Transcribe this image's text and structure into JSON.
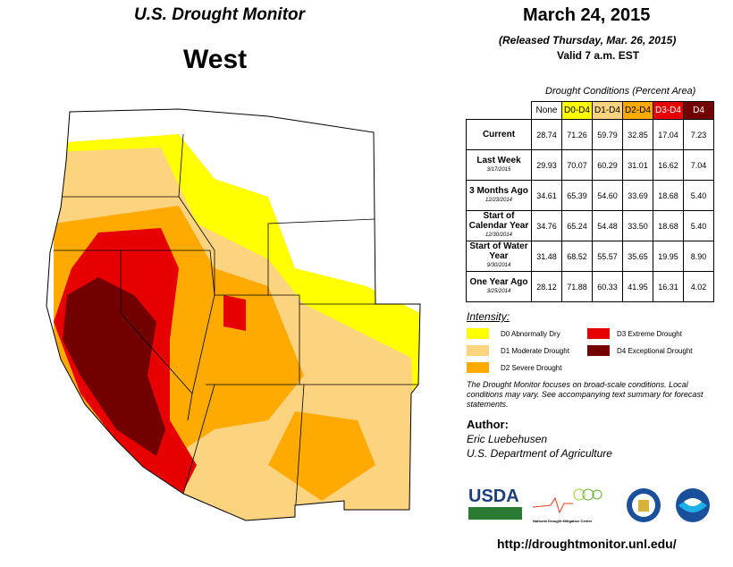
{
  "header": {
    "title": "U.S. Drought Monitor",
    "region": "West",
    "date": "March 24, 2015",
    "released": "(Released Thursday, Mar. 26, 2015)",
    "valid": "Valid  7 a.m. EST"
  },
  "table": {
    "caption": "Drought Conditions (Percent Area)",
    "columns": [
      "None",
      "D0-D4",
      "D1-D4",
      "D2-D4",
      "D3-D4",
      "D4"
    ],
    "column_colors": [
      "#ffffff",
      "#ffff00",
      "#fcd37f",
      "#ffaa00",
      "#e60000",
      "#730000"
    ],
    "rows": [
      {
        "label": "Current",
        "date": "",
        "values": [
          "28.74",
          "71.26",
          "59.79",
          "32.85",
          "17.04",
          "7.23"
        ]
      },
      {
        "label": "Last Week",
        "date": "3/17/2015",
        "values": [
          "29.93",
          "70.07",
          "60.29",
          "31.01",
          "16.62",
          "7.04"
        ]
      },
      {
        "label": "3 Months Ago",
        "date": "12/23/2014",
        "values": [
          "34.61",
          "65.39",
          "54.60",
          "33.69",
          "18.68",
          "5.40"
        ]
      },
      {
        "label": "Start of Calendar Year",
        "date": "12/30/2014",
        "values": [
          "34.76",
          "65.24",
          "54.48",
          "33.50",
          "18.68",
          "5.40"
        ]
      },
      {
        "label": "Start of Water Year",
        "date": "9/30/2014",
        "values": [
          "31.48",
          "68.52",
          "55.57",
          "35.65",
          "19.95",
          "8.90"
        ]
      },
      {
        "label": "One Year Ago",
        "date": "3/25/2014",
        "values": [
          "28.12",
          "71.88",
          "60.33",
          "41.95",
          "16.31",
          "4.02"
        ]
      }
    ]
  },
  "legend": {
    "title": "Intensity:",
    "items": [
      {
        "label": "D0 Abnormally Dry",
        "color": "#ffff00"
      },
      {
        "label": "D1 Moderate Drought",
        "color": "#fcd37f"
      },
      {
        "label": "D2 Severe Drought",
        "color": "#ffaa00"
      },
      {
        "label": "D3 Extreme Drought",
        "color": "#e60000"
      },
      {
        "label": "D4 Exceptional Drought",
        "color": "#730000"
      }
    ]
  },
  "note": "The Drought Monitor focuses on broad-scale conditions. Local conditions may vary. See accompanying text summary for forecast statements.",
  "author": {
    "label": "Author:",
    "name": "Eric Luebehusen",
    "org": "U.S. Department of Agriculture"
  },
  "logos": {
    "usda": "USDA",
    "ndmc": "National Drought Mitigation Center"
  },
  "url": "http://droughtmonitor.unl.edu/"
}
